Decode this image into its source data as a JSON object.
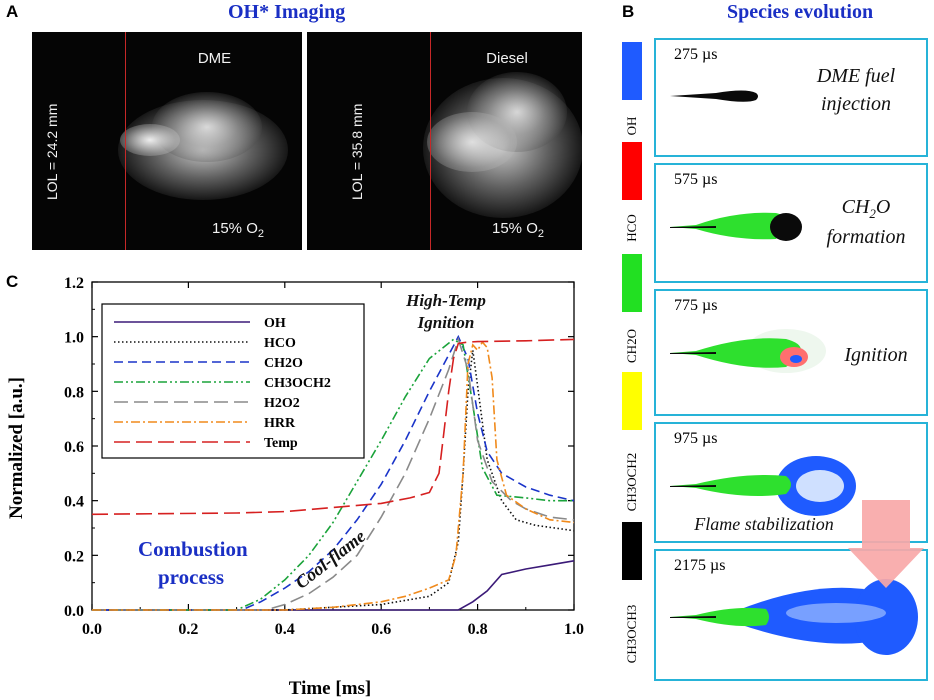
{
  "panelA": {
    "letter": "A",
    "title": "OH* Imaging",
    "images": [
      {
        "fuel": "DME",
        "lol": "LOL = 24.2 mm",
        "o2": "15% O",
        "o2_sub": "2"
      },
      {
        "fuel": "Diesel",
        "lol": "LOL = 35.8 mm",
        "o2": "15% O",
        "o2_sub": "2"
      }
    ]
  },
  "panelB": {
    "letter": "B",
    "title": "Species evolution",
    "species_legend": [
      {
        "label": "OH",
        "color": "#1f5bff"
      },
      {
        "label": "HCO",
        "color": "#ff0000"
      },
      {
        "label": "CH2O",
        "color": "#22e022"
      },
      {
        "label": "CH3OCH2",
        "color": "#ffff00"
      },
      {
        "label": "CH3OCH3",
        "color": "#000000"
      }
    ],
    "frames": [
      {
        "time": "275 µs",
        "desc": [
          "DME fuel",
          "injection"
        ]
      },
      {
        "time": "575 µs",
        "desc": [
          "CH2O",
          "formation"
        ]
      },
      {
        "time": "775 µs",
        "desc": [
          "Ignition"
        ]
      },
      {
        "time": "975 µs",
        "desc": [
          "Flame stabilization"
        ]
      },
      {
        "time": "2175 µs",
        "desc": []
      }
    ]
  },
  "panelC": {
    "letter": "C"
  },
  "chart_data": {
    "type": "line",
    "xlabel": "Time [ms]",
    "ylabel": "Normalized [a.u.]",
    "xlim": [
      0.0,
      1.0
    ],
    "ylim": [
      0.0,
      1.2
    ],
    "xticks": [
      "0.0",
      "0.2",
      "0.4",
      "0.6",
      "0.8",
      "1.0"
    ],
    "yticks": [
      "0.0",
      "0.2",
      "0.4",
      "0.6",
      "0.8",
      "1.0",
      "1.2"
    ],
    "annotations": {
      "high_temp": [
        "High-Temp",
        "Ignition"
      ],
      "cool_flame": "Cool-flame",
      "combustion": [
        "Combustion",
        "process"
      ]
    },
    "series": [
      {
        "name": "OH",
        "color": "#3b1a78",
        "dash": "",
        "x": [
          0.0,
          0.76,
          0.79,
          0.82,
          0.85,
          0.9,
          0.95,
          1.0
        ],
        "y": [
          0.0,
          0.0,
          0.03,
          0.07,
          0.13,
          0.15,
          0.165,
          0.18
        ]
      },
      {
        "name": "HCO",
        "color": "#111111",
        "dash": "1.5,2.5",
        "x": [
          0.0,
          0.4,
          0.6,
          0.7,
          0.74,
          0.76,
          0.77,
          0.78,
          0.79,
          0.8,
          0.82,
          0.85,
          0.88,
          0.92,
          0.96,
          1.0
        ],
        "y": [
          0.0,
          0.0,
          0.02,
          0.05,
          0.1,
          0.25,
          0.5,
          0.8,
          0.95,
          0.82,
          0.55,
          0.4,
          0.33,
          0.31,
          0.3,
          0.29
        ]
      },
      {
        "name": "CH2O",
        "color": "#1a34c9",
        "dash": "9,5",
        "x": [
          0.0,
          0.31,
          0.35,
          0.4,
          0.45,
          0.5,
          0.55,
          0.6,
          0.65,
          0.7,
          0.73,
          0.76,
          0.78,
          0.8,
          0.82,
          0.85,
          0.9,
          0.95,
          1.0
        ],
        "y": [
          0.0,
          0.0,
          0.03,
          0.08,
          0.14,
          0.22,
          0.33,
          0.46,
          0.62,
          0.8,
          0.9,
          1.0,
          0.92,
          0.72,
          0.58,
          0.5,
          0.45,
          0.42,
          0.4
        ]
      },
      {
        "name": "CH3OCH2",
        "color": "#1aa33a",
        "dash": "9,3,2,3,2,3",
        "x": [
          0.0,
          0.3,
          0.35,
          0.4,
          0.45,
          0.5,
          0.55,
          0.6,
          0.65,
          0.7,
          0.75,
          0.77,
          0.79,
          0.81,
          0.84,
          0.9,
          0.95,
          1.0
        ],
        "y": [
          0.0,
          0.0,
          0.04,
          0.11,
          0.2,
          0.32,
          0.47,
          0.62,
          0.78,
          0.92,
          0.99,
          0.97,
          0.75,
          0.52,
          0.42,
          0.41,
          0.4,
          0.4
        ]
      },
      {
        "name": "H2O2",
        "color": "#8a8a8a",
        "dash": "14,6",
        "x": [
          0.0,
          0.36,
          0.4,
          0.45,
          0.5,
          0.55,
          0.6,
          0.65,
          0.7,
          0.74,
          0.76,
          0.78,
          0.8,
          0.83,
          0.87,
          0.9,
          0.95,
          1.0
        ],
        "y": [
          0.0,
          0.0,
          0.02,
          0.06,
          0.12,
          0.2,
          0.34,
          0.5,
          0.7,
          0.88,
          0.99,
          0.88,
          0.62,
          0.47,
          0.4,
          0.37,
          0.34,
          0.33
        ]
      },
      {
        "name": "HRR",
        "color": "#f08a1c",
        "dash": "9,3,2,3",
        "x": [
          0.0,
          0.4,
          0.5,
          0.6,
          0.65,
          0.7,
          0.74,
          0.755,
          0.77,
          0.78,
          0.79,
          0.8,
          0.81,
          0.82,
          0.83,
          0.84,
          0.86,
          0.9,
          0.95,
          1.0
        ],
        "y": [
          0.0,
          0.0,
          0.01,
          0.03,
          0.05,
          0.08,
          0.11,
          0.2,
          0.5,
          0.9,
          0.97,
          0.95,
          0.98,
          0.96,
          0.85,
          0.55,
          0.42,
          0.37,
          0.33,
          0.32
        ]
      },
      {
        "name": "Temp",
        "color": "#d62020",
        "dash": "16,6",
        "x": [
          0.0,
          0.3,
          0.4,
          0.5,
          0.6,
          0.66,
          0.7,
          0.72,
          0.73,
          0.74,
          0.75,
          0.76,
          0.78,
          0.8,
          0.9,
          1.0
        ],
        "y": [
          0.35,
          0.355,
          0.36,
          0.375,
          0.39,
          0.41,
          0.43,
          0.5,
          0.65,
          0.8,
          0.92,
          0.975,
          0.98,
          0.982,
          0.985,
          0.99
        ]
      }
    ]
  }
}
